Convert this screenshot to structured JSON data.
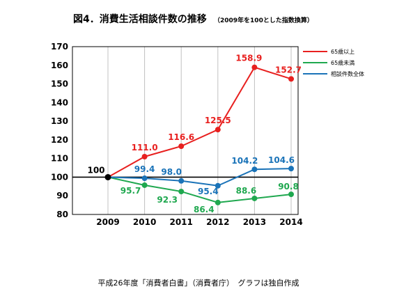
{
  "title": "図4．消費生活相談件数の推移",
  "subtitle": "（2009年を100とした指数換算）",
  "source": "平成26年度「消費者白書」（消費者庁）　グラフは独自作成",
  "chart_data": {
    "type": "line",
    "x": [
      "2009",
      "2010",
      "2011",
      "2012",
      "2013",
      "2014"
    ],
    "ylim": [
      80,
      170
    ],
    "yticks": [
      80,
      90,
      100,
      110,
      120,
      130,
      140,
      150,
      160,
      170
    ],
    "grid": "vertical",
    "reference_line": 100,
    "legend_position": "top-right",
    "series": [
      {
        "name": "65歳以上",
        "color": "#e8201f",
        "values": [
          100,
          111.0,
          116.6,
          125.5,
          158.9,
          152.7
        ],
        "labels": [
          "",
          "111.0",
          "116.6",
          "125.5",
          "158.9",
          "152.7"
        ]
      },
      {
        "name": "65歳未満",
        "color": "#1fa84f",
        "values": [
          100,
          95.7,
          92.3,
          86.4,
          88.6,
          90.8
        ],
        "labels": [
          "",
          "95.7",
          "92.3",
          "86.4",
          "88.6",
          "90.8"
        ]
      },
      {
        "name": "相談件数全体",
        "color": "#1a73b8",
        "values": [
          100,
          99.4,
          98.0,
          95.4,
          104.2,
          104.6
        ],
        "labels": [
          "",
          "99.4",
          "98.0",
          "95.4",
          "104.2",
          "104.6"
        ]
      }
    ],
    "base_point": {
      "x": "2009",
      "value": 100,
      "label": "100",
      "color": "#000000"
    }
  }
}
